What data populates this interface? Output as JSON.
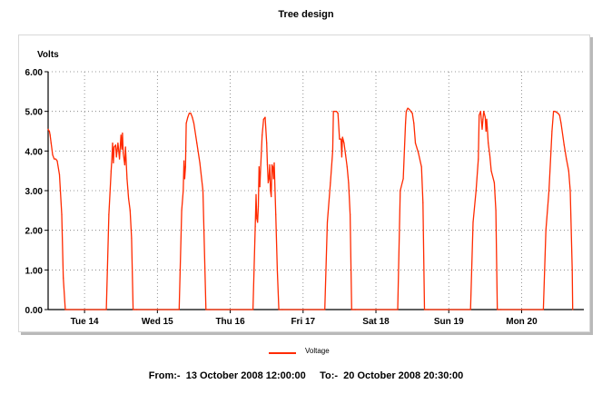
{
  "chart_data": {
    "type": "line",
    "title": "Tree design",
    "ylabel": "Volts",
    "ylim": [
      0,
      6
    ],
    "yticks": [
      "0.00",
      "1.00",
      "2.00",
      "3.00",
      "4.00",
      "5.00",
      "6.00"
    ],
    "xlim": [
      "2008-10-13 12:00",
      "2008-10-20 20:30"
    ],
    "xticks": [
      {
        "label": "Tue 14",
        "at": "2008-10-14 00:00"
      },
      {
        "label": "Wed 15",
        "at": "2008-10-15 00:00"
      },
      {
        "label": "Thu 16",
        "at": "2008-10-16 00:00"
      },
      {
        "label": "Fri 17",
        "at": "2008-10-17 00:00"
      },
      {
        "label": "Sat 18",
        "at": "2008-10-18 00:00"
      },
      {
        "label": "Sun 19",
        "at": "2008-10-19 00:00"
      },
      {
        "label": "Mon 20",
        "at": "2008-10-20 00:00"
      }
    ],
    "grid": true,
    "legend_position": "bottom",
    "series": [
      {
        "name": "Voltage",
        "color": "#ff2a00",
        "x": [
          "2008-10-13 12:00",
          "2008-10-13 12:10",
          "2008-10-13 12:25",
          "2008-10-13 12:40",
          "2008-10-13 13:00",
          "2008-10-13 13:30",
          "2008-10-13 14:00",
          "2008-10-13 14:30",
          "2008-10-13 15:00",
          "2008-10-13 15:45",
          "2008-10-13 16:30",
          "2008-10-13 17:00",
          "2008-10-13 17:40",
          "2008-10-14 07:10",
          "2008-10-14 08:00",
          "2008-10-14 08:45",
          "2008-10-14 09:00",
          "2008-10-14 09:15",
          "2008-10-14 09:30",
          "2008-10-14 09:45",
          "2008-10-14 10:15",
          "2008-10-14 10:30",
          "2008-10-14 11:00",
          "2008-10-14 11:30",
          "2008-10-14 12:00",
          "2008-10-14 12:15",
          "2008-10-14 12:30",
          "2008-10-14 12:45",
          "2008-10-14 13:15",
          "2008-10-14 13:30",
          "2008-10-14 14:00",
          "2008-10-14 14:30",
          "2008-10-14 15:00",
          "2008-10-14 15:30",
          "2008-10-14 16:00",
          "2008-10-14 17:10",
          "2008-10-15 07:10",
          "2008-10-15 08:00",
          "2008-10-15 08:30",
          "2008-10-15 08:45",
          "2008-10-15 09:00",
          "2008-10-15 09:15",
          "2008-10-15 09:30",
          "2008-10-15 10:00",
          "2008-10-15 10:30",
          "2008-10-15 11:00",
          "2008-10-15 11:30",
          "2008-10-15 12:00",
          "2008-10-15 13:00",
          "2008-10-15 14:00",
          "2008-10-15 15:00",
          "2008-10-15 16:00",
          "2008-10-15 17:10",
          "2008-10-16 07:30",
          "2008-10-16 08:15",
          "2008-10-16 08:30",
          "2008-10-16 08:45",
          "2008-10-16 09:00",
          "2008-10-16 09:15",
          "2008-10-16 09:30",
          "2008-10-16 09:45",
          "2008-10-16 10:00",
          "2008-10-16 10:15",
          "2008-10-16 10:30",
          "2008-10-16 11:00",
          "2008-10-16 11:30",
          "2008-10-16 12:00",
          "2008-10-16 12:15",
          "2008-10-16 12:30",
          "2008-10-16 12:45",
          "2008-10-16 13:00",
          "2008-10-16 13:15",
          "2008-10-16 13:30",
          "2008-10-16 13:45",
          "2008-10-16 14:00",
          "2008-10-16 14:15",
          "2008-10-16 14:30",
          "2008-10-16 15:00",
          "2008-10-16 15:30",
          "2008-10-16 16:00",
          "2008-10-16 17:10",
          "2008-10-17 07:10",
          "2008-10-17 08:00",
          "2008-10-17 09:00",
          "2008-10-17 09:45",
          "2008-10-17 10:00",
          "2008-10-17 11:00",
          "2008-10-17 11:30",
          "2008-10-17 12:00",
          "2008-10-17 12:30",
          "2008-10-17 12:45",
          "2008-10-17 13:00",
          "2008-10-17 13:30",
          "2008-10-17 14:00",
          "2008-10-17 14:30",
          "2008-10-17 15:00",
          "2008-10-17 15:30",
          "2008-10-17 16:00",
          "2008-10-17 17:10",
          "2008-10-18 07:10",
          "2008-10-18 08:00",
          "2008-10-18 09:00",
          "2008-10-18 09:45",
          "2008-10-18 10:00",
          "2008-10-18 10:30",
          "2008-10-18 11:00",
          "2008-10-18 12:00",
          "2008-10-18 12:30",
          "2008-10-18 13:00",
          "2008-10-18 14:00",
          "2008-10-18 15:00",
          "2008-10-18 15:30",
          "2008-10-18 16:00",
          "2008-10-18 17:10",
          "2008-10-19 07:10",
          "2008-10-19 08:00",
          "2008-10-19 09:00",
          "2008-10-19 09:45",
          "2008-10-19 10:00",
          "2008-10-19 10:30",
          "2008-10-19 11:00",
          "2008-10-19 11:15",
          "2008-10-19 11:30",
          "2008-10-19 12:00",
          "2008-10-19 12:15",
          "2008-10-19 12:30",
          "2008-10-19 12:45",
          "2008-10-19 13:00",
          "2008-10-19 13:30",
          "2008-10-19 14:00",
          "2008-10-19 15:00",
          "2008-10-19 15:30",
          "2008-10-19 16:00",
          "2008-10-19 17:10",
          "2008-10-20 07:10",
          "2008-10-20 08:00",
          "2008-10-20 09:00",
          "2008-10-20 10:00",
          "2008-10-20 10:30",
          "2008-10-20 11:00",
          "2008-10-20 12:00",
          "2008-10-20 12:30",
          "2008-10-20 13:00",
          "2008-10-20 14:00",
          "2008-10-20 14:45",
          "2008-10-20 15:30",
          "2008-10-20 16:00",
          "2008-10-20 16:40",
          "2008-10-20 16:50"
        ],
        "values": [
          4.55,
          4.52,
          4.5,
          4.4,
          4.2,
          3.9,
          3.8,
          3.8,
          3.75,
          3.4,
          2.4,
          0.8,
          0.0,
          0.0,
          2.4,
          3.5,
          3.8,
          4.2,
          3.7,
          4.1,
          4.15,
          3.85,
          4.2,
          3.8,
          4.4,
          4.05,
          4.45,
          3.95,
          3.65,
          4.1,
          3.3,
          2.8,
          2.5,
          1.8,
          0.0,
          0.0,
          0.0,
          2.5,
          3.0,
          3.75,
          3.3,
          3.6,
          4.7,
          4.85,
          4.95,
          4.95,
          4.85,
          4.7,
          4.2,
          3.7,
          3.0,
          0.0,
          0.0,
          0.0,
          2.1,
          2.9,
          2.3,
          2.2,
          2.6,
          3.6,
          3.1,
          3.55,
          3.95,
          4.4,
          4.8,
          4.85,
          4.2,
          3.65,
          3.2,
          3.3,
          3.65,
          3.0,
          2.85,
          3.65,
          3.6,
          3.3,
          3.7,
          2.4,
          1.0,
          0.0,
          0.0,
          0.0,
          2.2,
          3.2,
          4.0,
          5.0,
          5.0,
          4.95,
          4.3,
          4.3,
          3.85,
          4.35,
          4.2,
          3.9,
          3.6,
          3.2,
          2.4,
          0.0,
          0.0,
          0.0,
          3.0,
          3.3,
          4.7,
          5.0,
          5.08,
          5.05,
          4.95,
          4.7,
          4.2,
          3.95,
          3.6,
          2.7,
          0.0,
          0.0,
          0.0,
          2.2,
          3.0,
          3.8,
          4.9,
          5.0,
          4.55,
          4.8,
          5.0,
          4.85,
          4.5,
          4.8,
          4.5,
          4.2,
          3.9,
          3.5,
          3.2,
          2.5,
          0.0,
          0.0,
          0.0,
          2.0,
          3.0,
          4.5,
          5.0,
          5.0,
          4.95,
          4.9,
          4.7,
          4.15,
          3.8,
          3.5,
          3.0,
          1.0,
          0.0
        ]
      }
    ]
  },
  "footer": {
    "from_label": "From:-",
    "from_value": "13 October 2008 12:00:00",
    "to_label": "To:-",
    "to_value": "20 October 2008 20:30:00"
  }
}
